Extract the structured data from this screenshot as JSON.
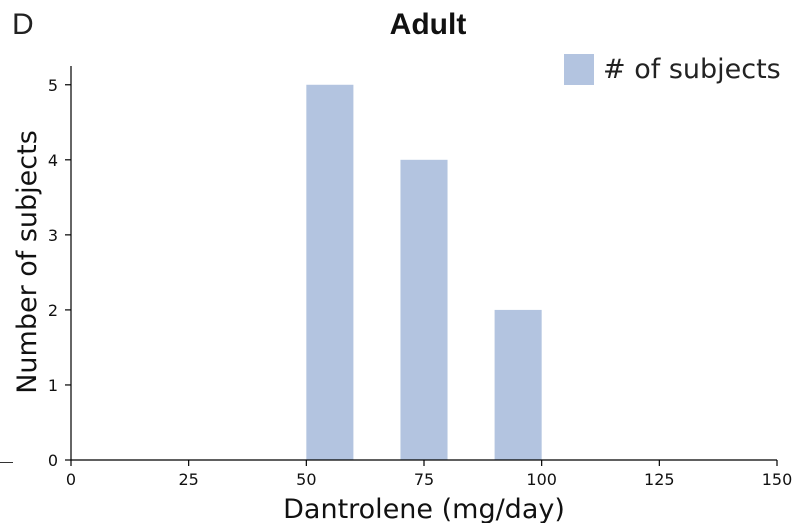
{
  "panel_label": "D",
  "chart_data": {
    "type": "bar",
    "title": "Adult",
    "xlabel": "Dantrolene (mg/day)",
    "ylabel": "Number of subjects",
    "xlim": [
      0,
      150
    ],
    "ylim": [
      0,
      5.25
    ],
    "xticks": [
      0,
      25,
      50,
      75,
      100,
      125,
      150
    ],
    "yticks": [
      0,
      1,
      2,
      3,
      4,
      5
    ],
    "bars": [
      {
        "x_start": 50,
        "x_end": 60,
        "value": 5
      },
      {
        "x_start": 70,
        "x_end": 80,
        "value": 4
      },
      {
        "x_start": 90,
        "x_end": 100,
        "value": 2
      }
    ],
    "series": [
      {
        "name": "# of subjects",
        "color": "#b3c4e0"
      }
    ],
    "legend": "top-right",
    "grid": false
  }
}
